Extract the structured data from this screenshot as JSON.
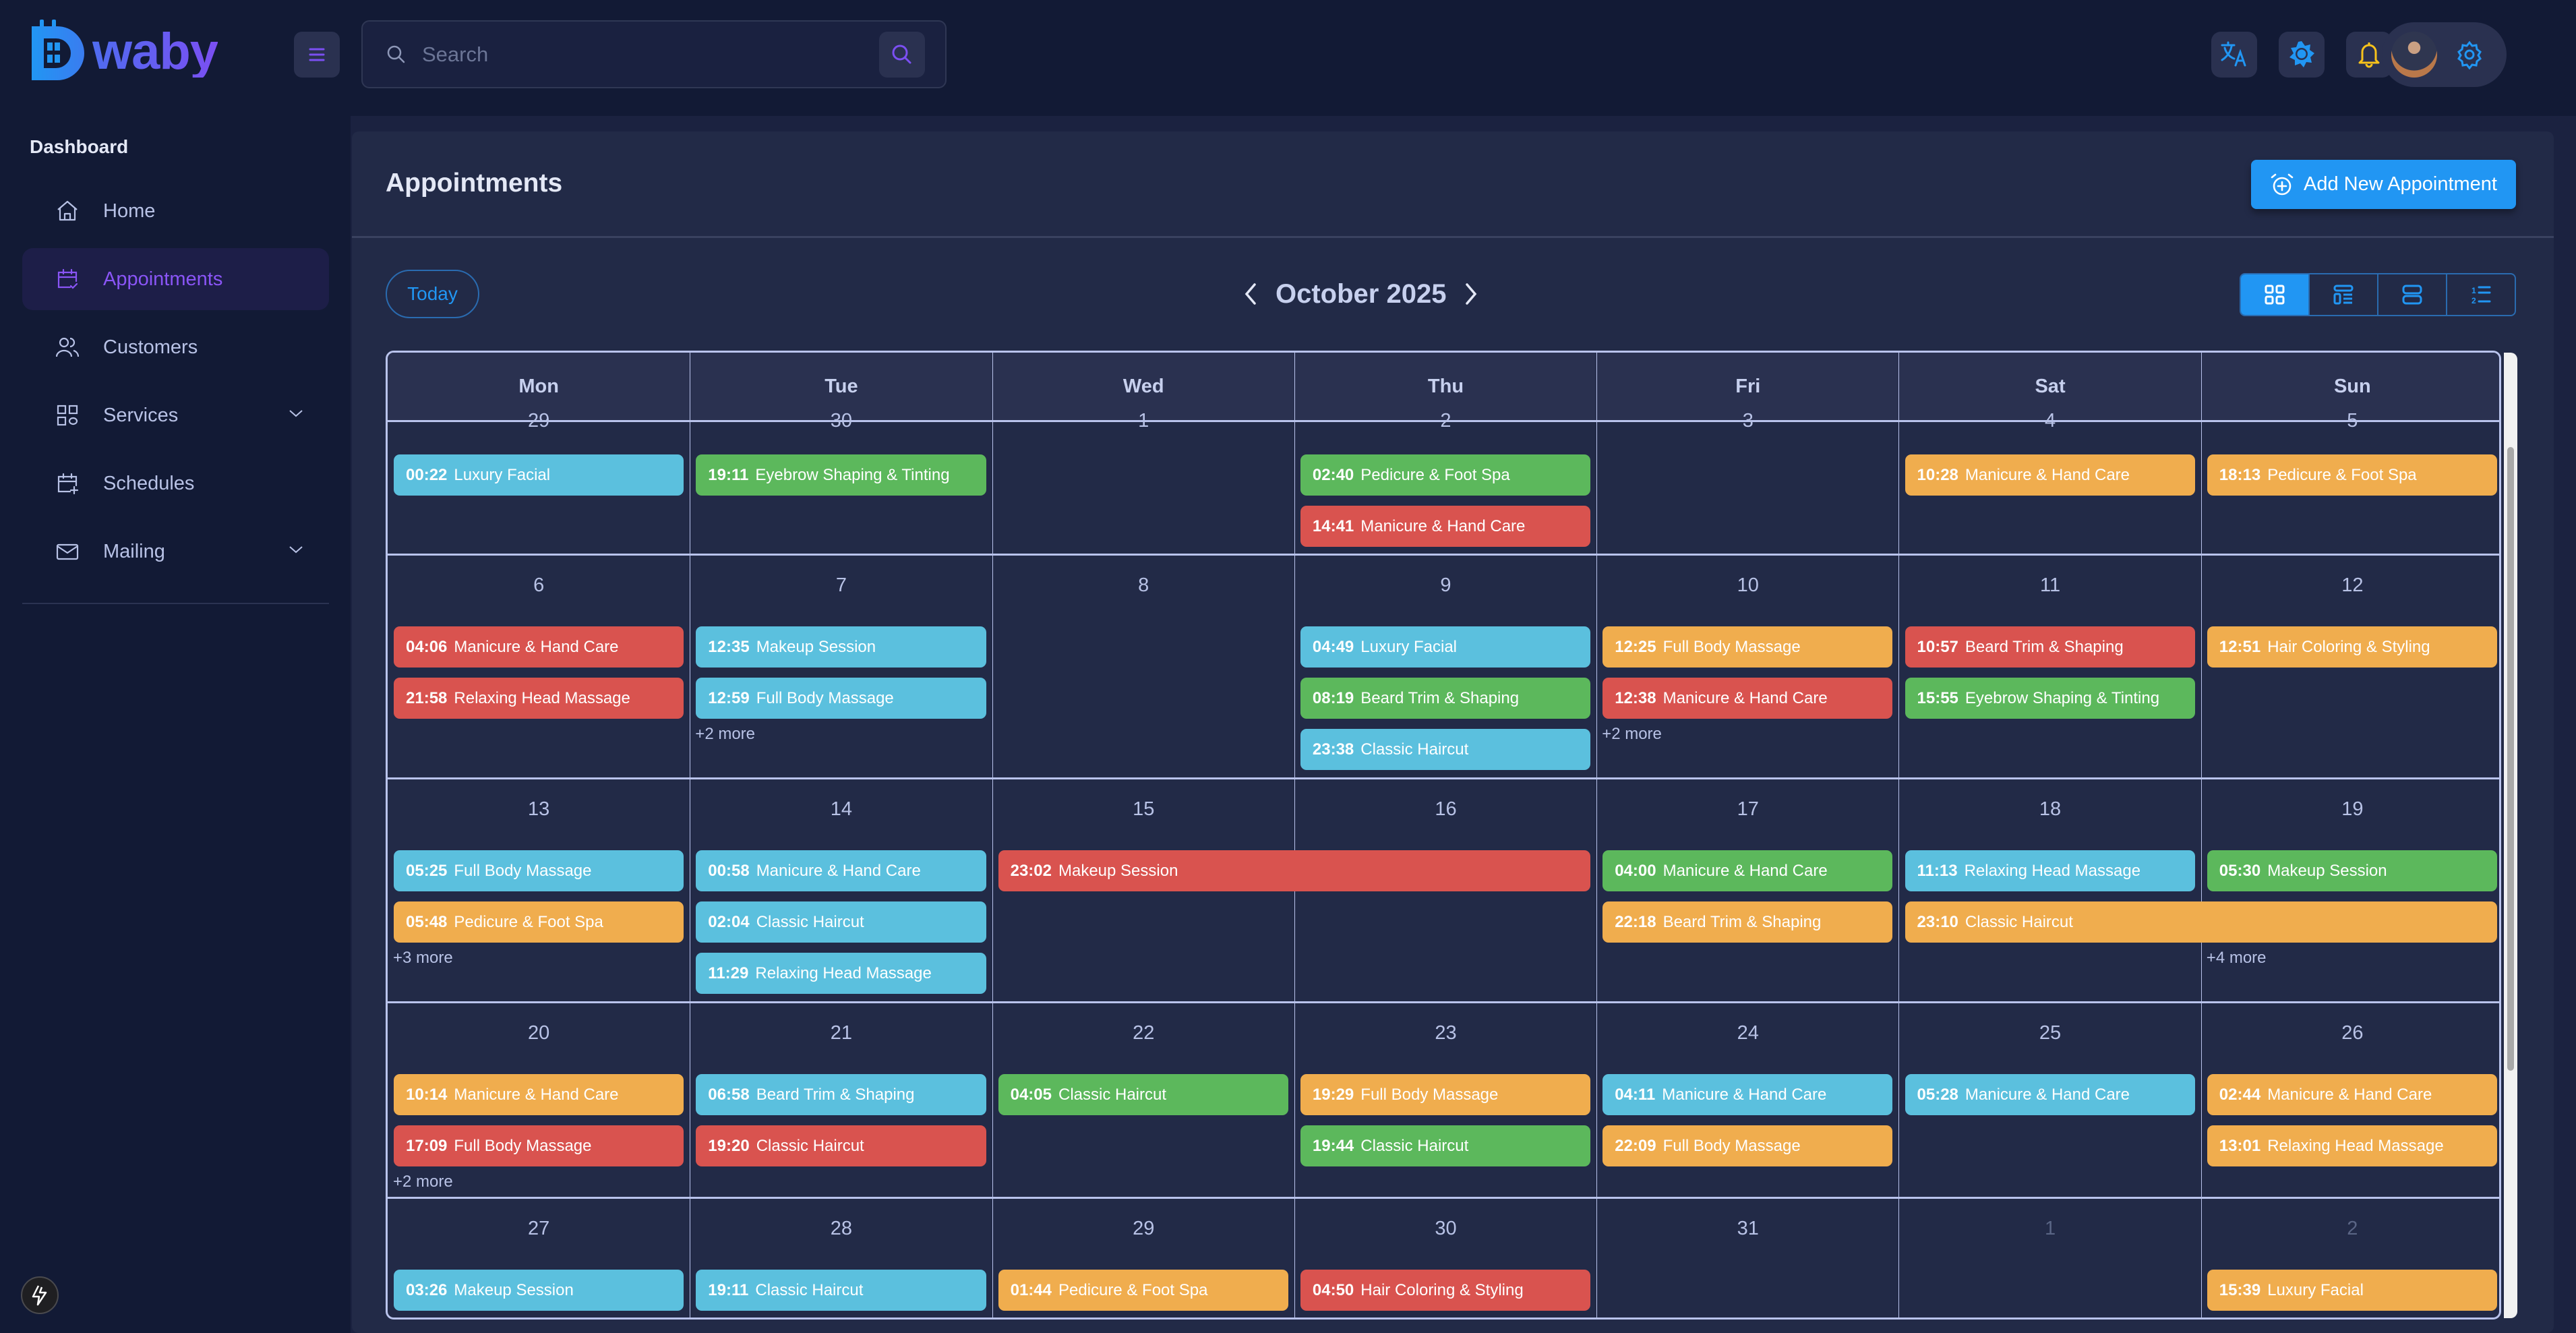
{
  "app": {
    "logo_text": "waby",
    "logo_letter": "D"
  },
  "topbar": {
    "search_placeholder": "Search",
    "icons": [
      "translate-icon",
      "brightness-icon",
      "bell-icon",
      "avatar",
      "gear-icon"
    ]
  },
  "sidebar": {
    "heading": "Dashboard",
    "items": [
      {
        "label": "Home",
        "icon": "home-icon",
        "active": false,
        "expandable": false
      },
      {
        "label": "Appointments",
        "icon": "calendar-check-icon",
        "active": true,
        "expandable": false
      },
      {
        "label": "Customers",
        "icon": "users-icon",
        "active": false,
        "expandable": false
      },
      {
        "label": "Services",
        "icon": "grid-icon",
        "active": false,
        "expandable": true
      },
      {
        "label": "Schedules",
        "icon": "calendar-plus-icon",
        "active": false,
        "expandable": false
      },
      {
        "label": "Mailing",
        "icon": "mail-icon",
        "active": false,
        "expandable": true
      }
    ]
  },
  "page": {
    "title": "Appointments",
    "add_button_label": "Add New Appointment"
  },
  "calendar": {
    "today_label": "Today",
    "month_title": "October 2025",
    "views": [
      "month-view",
      "week-view",
      "day-view",
      "list-view"
    ],
    "active_view": "month-view",
    "weekdays": [
      "Mon",
      "Tue",
      "Wed",
      "Thu",
      "Fri",
      "Sat",
      "Sun"
    ],
    "colors": {
      "blue": "#5bc0de",
      "green": "#5cb85c",
      "red": "#d9534f",
      "orange": "#f0ad4e",
      "accent": "#2196f3",
      "sidebar_active": "#8a55f6"
    },
    "weeks": [
      {
        "days": [
          "29",
          "30",
          "1",
          "2",
          "3",
          "4",
          "5"
        ],
        "events": [
          {
            "col": 0,
            "span": 1,
            "row": 0,
            "time": "00:22",
            "title": "Luxury Facial",
            "color": "blue"
          },
          {
            "col": 1,
            "span": 1,
            "row": 0,
            "time": "19:11",
            "title": "Eyebrow Shaping & Tinting",
            "color": "green"
          },
          {
            "col": 3,
            "span": 1,
            "row": 0,
            "time": "02:40",
            "title": "Pedicure & Foot Spa",
            "color": "green"
          },
          {
            "col": 3,
            "span": 1,
            "row": 1,
            "time": "14:41",
            "title": "Manicure & Hand Care",
            "color": "red"
          },
          {
            "col": 5,
            "span": 1,
            "row": 0,
            "time": "10:28",
            "title": "Manicure & Hand Care",
            "color": "orange"
          },
          {
            "col": 6,
            "span": 1,
            "row": 0,
            "time": "18:13",
            "title": "Pedicure & Foot Spa",
            "color": "orange"
          }
        ],
        "more": []
      },
      {
        "days": [
          "6",
          "7",
          "8",
          "9",
          "10",
          "11",
          "12"
        ],
        "events": [
          {
            "col": 0,
            "span": 1,
            "row": 0,
            "time": "04:06",
            "title": "Manicure & Hand Care",
            "color": "red"
          },
          {
            "col": 0,
            "span": 1,
            "row": 1,
            "time": "21:58",
            "title": "Relaxing Head Massage",
            "color": "red"
          },
          {
            "col": 1,
            "span": 1,
            "row": 0,
            "time": "12:35",
            "title": "Makeup Session",
            "color": "blue"
          },
          {
            "col": 1,
            "span": 1,
            "row": 1,
            "time": "12:59",
            "title": "Full Body Massage",
            "color": "blue"
          },
          {
            "col": 3,
            "span": 1,
            "row": 0,
            "time": "04:49",
            "title": "Luxury Facial",
            "color": "blue"
          },
          {
            "col": 3,
            "span": 1,
            "row": 1,
            "time": "08:19",
            "title": "Beard Trim & Shaping",
            "color": "green"
          },
          {
            "col": 3,
            "span": 1,
            "row": 2,
            "time": "23:38",
            "title": "Classic Haircut",
            "color": "blue"
          },
          {
            "col": 4,
            "span": 1,
            "row": 0,
            "time": "12:25",
            "title": "Full Body Massage",
            "color": "orange"
          },
          {
            "col": 4,
            "span": 1,
            "row": 1,
            "time": "12:38",
            "title": "Manicure & Hand Care",
            "color": "red"
          },
          {
            "col": 5,
            "span": 1,
            "row": 0,
            "time": "10:57",
            "title": "Beard Trim & Shaping",
            "color": "red"
          },
          {
            "col": 5,
            "span": 1,
            "row": 1,
            "time": "15:55",
            "title": "Eyebrow Shaping & Tinting",
            "color": "green"
          },
          {
            "col": 6,
            "span": 1,
            "row": 0,
            "time": "12:51",
            "title": "Hair Coloring & Styling",
            "color": "orange"
          }
        ],
        "more": [
          {
            "col": 1,
            "label": "+2 more"
          },
          {
            "col": 4,
            "label": "+2 more"
          }
        ]
      },
      {
        "days": [
          "13",
          "14",
          "15",
          "16",
          "17",
          "18",
          "19"
        ],
        "events": [
          {
            "col": 0,
            "span": 1,
            "row": 0,
            "time": "05:25",
            "title": "Full Body Massage",
            "color": "blue"
          },
          {
            "col": 0,
            "span": 1,
            "row": 1,
            "time": "05:48",
            "title": "Pedicure & Foot Spa",
            "color": "orange"
          },
          {
            "col": 1,
            "span": 1,
            "row": 0,
            "time": "00:58",
            "title": "Manicure & Hand Care",
            "color": "blue"
          },
          {
            "col": 1,
            "span": 1,
            "row": 1,
            "time": "02:04",
            "title": "Classic Haircut",
            "color": "blue"
          },
          {
            "col": 1,
            "span": 1,
            "row": 2,
            "time": "11:29",
            "title": "Relaxing Head Massage",
            "color": "blue"
          },
          {
            "col": 2,
            "span": 2,
            "row": 0,
            "time": "23:02",
            "title": "Makeup Session",
            "color": "red"
          },
          {
            "col": 4,
            "span": 1,
            "row": 0,
            "time": "04:00",
            "title": "Manicure & Hand Care",
            "color": "green"
          },
          {
            "col": 4,
            "span": 1,
            "row": 1,
            "time": "22:18",
            "title": "Beard Trim & Shaping",
            "color": "orange"
          },
          {
            "col": 5,
            "span": 1,
            "row": 0,
            "time": "11:13",
            "title": "Relaxing Head Massage",
            "color": "blue"
          },
          {
            "col": 5,
            "span": 2,
            "row": 1,
            "time": "23:10",
            "title": "Classic Haircut",
            "color": "orange"
          },
          {
            "col": 6,
            "span": 1,
            "row": 0,
            "time": "05:30",
            "title": "Makeup Session",
            "color": "green"
          }
        ],
        "more": [
          {
            "col": 0,
            "label": "+3 more"
          },
          {
            "col": 6,
            "label": "+4 more"
          }
        ]
      },
      {
        "days": [
          "20",
          "21",
          "22",
          "23",
          "24",
          "25",
          "26"
        ],
        "events": [
          {
            "col": 0,
            "span": 1,
            "row": 0,
            "time": "10:14",
            "title": "Manicure & Hand Care",
            "color": "orange"
          },
          {
            "col": 0,
            "span": 1,
            "row": 1,
            "time": "17:09",
            "title": "Full Body Massage",
            "color": "red"
          },
          {
            "col": 1,
            "span": 1,
            "row": 0,
            "time": "06:58",
            "title": "Beard Trim & Shaping",
            "color": "blue"
          },
          {
            "col": 1,
            "span": 1,
            "row": 1,
            "time": "19:20",
            "title": "Classic Haircut",
            "color": "red"
          },
          {
            "col": 2,
            "span": 1,
            "row": 0,
            "time": "04:05",
            "title": "Classic Haircut",
            "color": "green"
          },
          {
            "col": 3,
            "span": 1,
            "row": 0,
            "time": "19:29",
            "title": "Full Body Massage",
            "color": "orange"
          },
          {
            "col": 3,
            "span": 1,
            "row": 1,
            "time": "19:44",
            "title": "Classic Haircut",
            "color": "green"
          },
          {
            "col": 4,
            "span": 1,
            "row": 0,
            "time": "04:11",
            "title": "Manicure & Hand Care",
            "color": "blue"
          },
          {
            "col": 4,
            "span": 1,
            "row": 1,
            "time": "22:09",
            "title": "Full Body Massage",
            "color": "orange"
          },
          {
            "col": 5,
            "span": 1,
            "row": 0,
            "time": "05:28",
            "title": "Manicure & Hand Care",
            "color": "blue"
          },
          {
            "col": 6,
            "span": 1,
            "row": 0,
            "time": "02:44",
            "title": "Manicure & Hand Care",
            "color": "orange"
          },
          {
            "col": 6,
            "span": 1,
            "row": 1,
            "time": "13:01",
            "title": "Relaxing Head Massage",
            "color": "orange"
          }
        ],
        "more": [
          {
            "col": 0,
            "label": "+2 more"
          }
        ]
      },
      {
        "days": [
          "27",
          "28",
          "29",
          "30",
          "31",
          "1",
          "2"
        ],
        "other_month": [
          5,
          6
        ],
        "events": [
          {
            "col": 0,
            "span": 1,
            "row": 0,
            "time": "03:26",
            "title": "Makeup Session",
            "color": "blue"
          },
          {
            "col": 1,
            "span": 1,
            "row": 0,
            "time": "19:11",
            "title": "Classic Haircut",
            "color": "blue"
          },
          {
            "col": 2,
            "span": 1,
            "row": 0,
            "time": "01:44",
            "title": "Pedicure & Foot Spa",
            "color": "orange"
          },
          {
            "col": 3,
            "span": 1,
            "row": 0,
            "time": "04:50",
            "title": "Hair Coloring & Styling",
            "color": "red"
          },
          {
            "col": 6,
            "span": 1,
            "row": 0,
            "time": "15:39",
            "title": "Luxury Facial",
            "color": "orange"
          }
        ],
        "more": []
      }
    ]
  }
}
